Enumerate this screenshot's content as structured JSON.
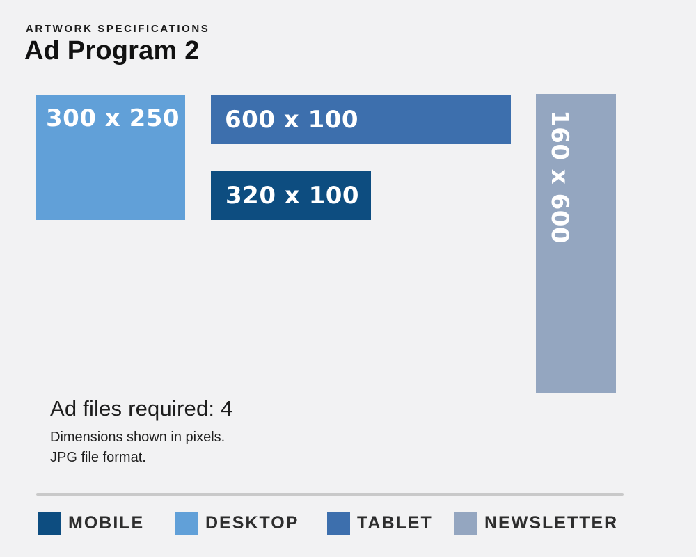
{
  "page": {
    "background_color": "#f2f2f3"
  },
  "header": {
    "eyebrow": "ARTWORK SPECIFICATIONS",
    "title": "Ad Program 2"
  },
  "ads": [
    {
      "id": "desktop",
      "label": "300 x 250",
      "category": "DESKTOP",
      "color": "#61a0d8",
      "orientation": "horizontal"
    },
    {
      "id": "tablet",
      "label": "600 x 100",
      "category": "TABLET",
      "color": "#3d6fad",
      "orientation": "horizontal"
    },
    {
      "id": "mobile",
      "label": "320 x 100",
      "category": "MOBILE",
      "color": "#0d4d80",
      "orientation": "horizontal"
    },
    {
      "id": "newsletter",
      "label": "160 x 600",
      "category": "NEWSLETTER",
      "color": "#94a6c0",
      "orientation": "vertical"
    }
  ],
  "notes": {
    "files_required": "Ad files required: 4",
    "line1": "Dimensions shown in pixels.",
    "line2": "JPG file format."
  },
  "legend": {
    "items": [
      {
        "label": "MOBILE",
        "color": "#0d4d80"
      },
      {
        "label": "DESKTOP",
        "color": "#61a0d8"
      },
      {
        "label": "TABLET",
        "color": "#3d6fad"
      },
      {
        "label": "NEWSLETTER",
        "color": "#94a6c0"
      }
    ]
  }
}
